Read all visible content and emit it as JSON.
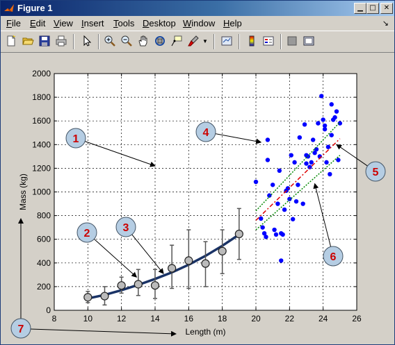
{
  "window": {
    "title": "Figure 1"
  },
  "menu": [
    {
      "key": "file",
      "first": "F",
      "rest": "ile"
    },
    {
      "key": "edit",
      "first": "E",
      "rest": "dit"
    },
    {
      "key": "view",
      "first": "V",
      "rest": "iew"
    },
    {
      "key": "insert",
      "first": "I",
      "rest": "nsert"
    },
    {
      "key": "tools",
      "first": "T",
      "rest": "ools"
    },
    {
      "key": "desktop",
      "first": "D",
      "rest": "esktop"
    },
    {
      "key": "window",
      "first": "W",
      "rest": "indow"
    },
    {
      "key": "help",
      "first": "H",
      "rest": "elp"
    }
  ],
  "toolbar": [
    "new-figure-icon",
    "open-file-icon",
    "save-icon",
    "print-icon",
    "edit-plot-arrow-icon",
    "zoom-in-icon",
    "zoom-out-icon",
    "pan-hand-icon",
    "rotate-3d-icon",
    "data-cursor-icon",
    "brush-icon",
    "link-plot-icon",
    "colorbar-icon",
    "legend-icon",
    "hide-plot-tools-icon",
    "show-plot-tools-icon"
  ],
  "chart_data": {
    "type": "scatter",
    "xlabel": "Length (m)",
    "ylabel": "Mass (kg)",
    "xlim": [
      8,
      26
    ],
    "ylim": [
      0,
      2000
    ],
    "xticks": [
      8,
      10,
      12,
      14,
      16,
      18,
      20,
      22,
      24,
      26
    ],
    "yticks": [
      0,
      200,
      400,
      600,
      800,
      1000,
      1200,
      1400,
      1600,
      1800,
      2000
    ],
    "grid": true,
    "error_series": {
      "x": [
        10,
        11,
        12,
        13,
        14,
        15,
        16,
        17,
        18,
        19
      ],
      "y": [
        110,
        120,
        210,
        220,
        210,
        355,
        420,
        395,
        500,
        645
      ],
      "lower": [
        65,
        45,
        145,
        125,
        100,
        185,
        185,
        200,
        310,
        430
      ],
      "upper": [
        160,
        200,
        280,
        345,
        345,
        550,
        680,
        580,
        680,
        860
      ]
    },
    "fit_curve": {
      "x": [
        10,
        11,
        12,
        13,
        14,
        15,
        16,
        17,
        18,
        19
      ],
      "y": [
        100,
        130,
        170,
        215,
        265,
        320,
        385,
        460,
        545,
        640
      ]
    },
    "scatter_series": {
      "x": [
        20.0,
        20.3,
        20.4,
        20.5,
        20.6,
        20.7,
        20.7,
        20.8,
        21.0,
        21.1,
        21.2,
        21.3,
        21.4,
        21.5,
        21.5,
        21.6,
        21.7,
        21.8,
        21.9,
        22.0,
        22.1,
        22.2,
        22.3,
        22.4,
        22.5,
        22.6,
        22.8,
        22.9,
        23.0,
        23.0,
        23.1,
        23.2,
        23.3,
        23.4,
        23.5,
        23.6,
        23.7,
        23.8,
        23.9,
        24.0,
        24.1,
        24.1,
        24.2,
        24.3,
        24.4,
        24.5,
        24.5,
        24.6,
        24.7,
        24.8,
        24.9,
        25.0
      ],
      "y": [
        1085,
        775,
        700,
        650,
        620,
        1440,
        1270,
        970,
        1060,
        680,
        640,
        900,
        1180,
        420,
        650,
        640,
        850,
        1010,
        1030,
        940,
        1310,
        770,
        1250,
        920,
        1060,
        1460,
        900,
        1570,
        1310,
        1240,
        1300,
        1210,
        1250,
        1440,
        1330,
        1360,
        1580,
        1300,
        1810,
        1610,
        1530,
        1560,
        1250,
        1380,
        1150,
        1480,
        1740,
        1610,
        1630,
        1680,
        1270,
        1580
      ]
    },
    "fit_line": {
      "x": [
        20,
        25
      ],
      "y": [
        760,
        1450
      ]
    },
    "ci_upper": {
      "x": [
        20,
        25
      ],
      "y": [
        840,
        1590
      ]
    },
    "ci_lower": {
      "x": [
        20,
        25
      ],
      "y": [
        680,
        1310
      ]
    },
    "annotations": [
      {
        "label": "1",
        "target_x": 14,
        "target_y": 1220
      },
      {
        "label": "2",
        "target_x": 12.9,
        "target_y": 280
      },
      {
        "label": "3",
        "target_x": 14.5,
        "target_y": 310
      },
      {
        "label": "4",
        "target_x": 20.3,
        "target_y": 1420
      },
      {
        "label": "5",
        "target_x": 24.8,
        "target_y": 1400
      },
      {
        "label": "6",
        "target_x": 23.5,
        "target_y": 1070
      },
      {
        "label": "7",
        "target_x": null,
        "target_y": null
      }
    ]
  },
  "colors": {
    "titlebar_text": "#ffffff",
    "figure_bg": "#d4d0c8",
    "scatter_blue": "#0000ff",
    "curve_navy": "#1a3366",
    "fit_red": "#dd0000",
    "ci_green": "#008800",
    "errorbar_gray": "#555555",
    "marker_fill": "#bbbbbb",
    "annotation_fill": "#b5cde3",
    "annotation_text": "#cc0000"
  }
}
